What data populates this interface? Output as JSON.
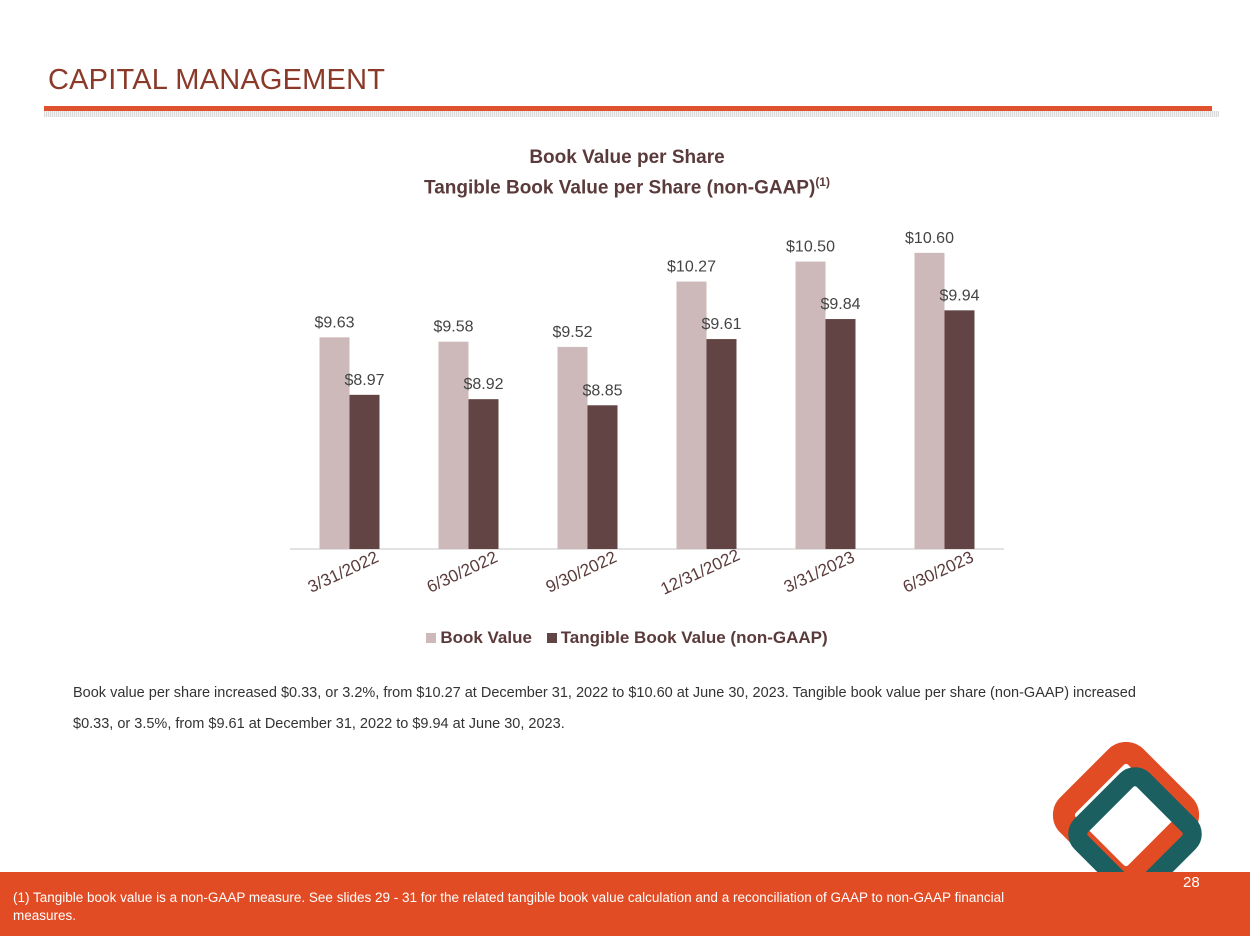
{
  "page": {
    "title": "CAPITAL MANAGEMENT",
    "summary": "Book value per share increased $0.33, or 3.2%, from $10.27 at December 31, 2022 to $10.60 at June 30, 2023. Tangible book value per share (non-GAAP) increased $0.33, or 3.5%, from $9.61 at December 31, 2022 to $9.94 at June 30, 2023.",
    "footnote": "(1) Tangible book value is a non-GAAP measure.  See slides 29 - 31 for the related tangible book value calculation and a reconciliation of GAAP to non-GAAP financial measures.",
    "page_number": "28",
    "colors": {
      "accent": "#e24c24",
      "title": "#8b3a2a",
      "logo_teal": "#1b5f60"
    }
  },
  "chart_data": {
    "type": "bar",
    "title": "Book Value per Share",
    "subtitle": "Tangible Book Value per Share (non-GAAP)",
    "subtitle_superscript": "(1)",
    "categories": [
      "3/31/2022",
      "6/30/2022",
      "9/30/2022",
      "12/31/2022",
      "3/31/2023",
      "6/30/2023"
    ],
    "series": [
      {
        "name": "Book Value",
        "color": "#cdb9b9",
        "values": [
          9.63,
          9.58,
          9.52,
          10.27,
          10.5,
          10.6
        ],
        "labels": [
          "$9.63",
          "$9.58",
          "$9.52",
          "$10.27",
          "$10.50",
          "$10.60"
        ]
      },
      {
        "name": "Tangible Book Value (non-GAAP)",
        "color": "#634444",
        "values": [
          8.97,
          8.92,
          8.85,
          9.61,
          9.84,
          9.94
        ],
        "labels": [
          "$8.97",
          "$8.92",
          "$8.85",
          "$9.61",
          "$9.84",
          "$9.94"
        ]
      }
    ],
    "legend_position": "bottom",
    "grid": false,
    "ylim": [
      7.2,
      11.0
    ]
  }
}
